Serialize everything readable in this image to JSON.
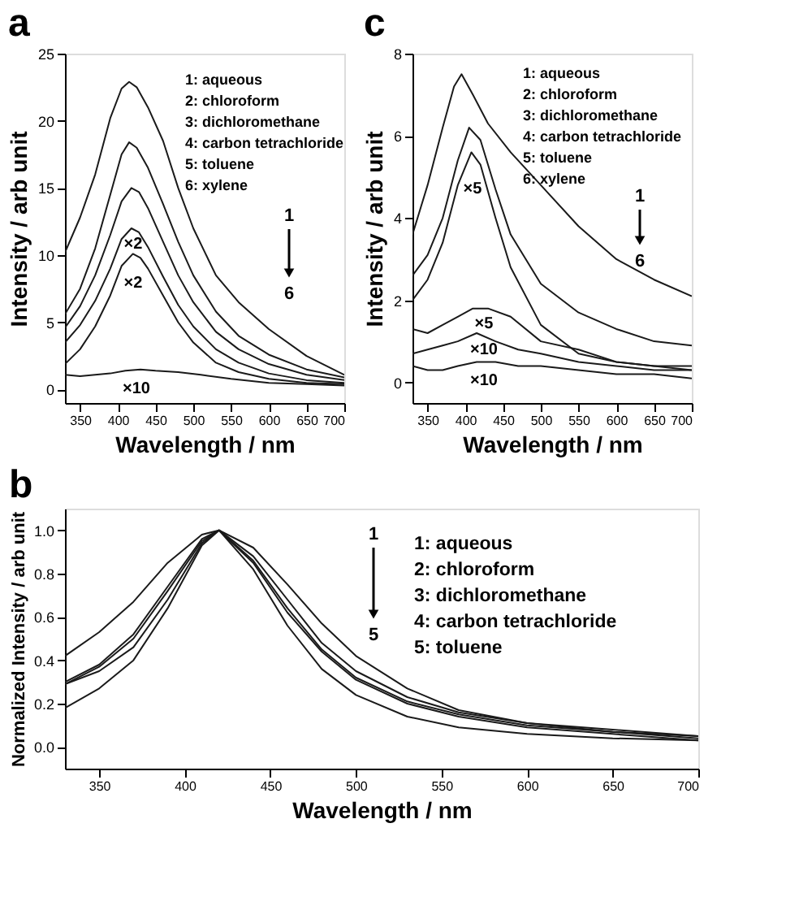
{
  "chart_data": [
    {
      "type": "line",
      "title": "a",
      "xlabel": "Wavelength / nm",
      "ylabel": "Intensity / arb unit",
      "xlim": [
        330,
        700
      ],
      "ylim": [
        -1,
        25
      ],
      "xticks": [
        350,
        400,
        450,
        500,
        550,
        600,
        650,
        700
      ],
      "yticks": [
        0,
        5,
        10,
        15,
        20,
        25
      ],
      "grid": false,
      "legend": false,
      "series": [
        {
          "color": "#1a1a1a",
          "x": [
            330,
            350,
            370,
            390,
            405,
            415,
            425,
            440,
            460,
            480,
            500,
            530,
            560,
            600,
            650,
            700
          ],
          "values": [
            10.2,
            12.8,
            16.0,
            20.2,
            22.4,
            22.9,
            22.5,
            21.0,
            18.5,
            15.0,
            12.0,
            8.5,
            6.5,
            4.5,
            2.5,
            1.1
          ]
        },
        {
          "color": "#1a1a1a",
          "x": [
            330,
            350,
            370,
            390,
            405,
            415,
            425,
            440,
            460,
            480,
            500,
            530,
            560,
            600,
            650,
            700
          ],
          "values": [
            5.6,
            7.5,
            10.5,
            14.5,
            17.5,
            18.4,
            18.0,
            16.5,
            13.8,
            11.0,
            8.5,
            5.8,
            4.0,
            2.6,
            1.5,
            0.9
          ]
        },
        {
          "color": "#1a1a1a",
          "x": [
            330,
            350,
            370,
            390,
            405,
            418,
            428,
            440,
            460,
            480,
            500,
            530,
            560,
            600,
            650,
            700
          ],
          "values": [
            4.6,
            6.2,
            8.5,
            11.5,
            14.0,
            15.0,
            14.7,
            13.5,
            11.0,
            8.5,
            6.5,
            4.3,
            3.0,
            1.9,
            1.1,
            0.7
          ]
        },
        {
          "color": "#1a1a1a",
          "x": [
            330,
            350,
            370,
            390,
            405,
            418,
            428,
            440,
            460,
            480,
            500,
            530,
            560,
            600,
            650,
            700
          ],
          "values": [
            3.5,
            4.8,
            6.6,
            9.0,
            11.2,
            12.0,
            11.7,
            10.6,
            8.4,
            6.3,
            4.7,
            3.0,
            2.0,
            1.2,
            0.7,
            0.5
          ]
        },
        {
          "color": "#1a1a1a",
          "x": [
            330,
            350,
            370,
            390,
            405,
            420,
            430,
            440,
            460,
            480,
            500,
            530,
            560,
            600,
            650,
            700
          ],
          "values": [
            1.9,
            3.0,
            4.7,
            7.0,
            9.2,
            10.1,
            9.8,
            9.0,
            7.0,
            5.0,
            3.5,
            2.0,
            1.3,
            0.8,
            0.5,
            0.4
          ]
        },
        {
          "color": "#1a1a1a",
          "x": [
            330,
            350,
            370,
            390,
            410,
            430,
            450,
            480,
            510,
            550,
            600,
            650,
            700
          ],
          "values": [
            1.1,
            1.0,
            1.1,
            1.2,
            1.4,
            1.5,
            1.4,
            1.3,
            1.1,
            0.8,
            0.5,
            0.4,
            0.3
          ]
        }
      ],
      "annotations": [
        "1: aqueous",
        "2: chloroform",
        "3: dichloromethane",
        "4: carbon tetrachloride",
        "5: toluene",
        "6: xylene",
        "1",
        "6",
        "×2",
        "×2",
        "×10"
      ]
    },
    {
      "type": "line",
      "title": "c",
      "xlabel": "Wavelength / nm",
      "ylabel": "Intensity / arb unit",
      "xlim": [
        330,
        700
      ],
      "ylim": [
        -0.5,
        8
      ],
      "xticks": [
        350,
        400,
        450,
        500,
        550,
        600,
        650,
        700
      ],
      "yticks": [
        0,
        2,
        4,
        6,
        8
      ],
      "grid": false,
      "legend": false,
      "series": [
        {
          "color": "#1a1a1a",
          "x": [
            330,
            350,
            370,
            385,
            395,
            410,
            430,
            460,
            500,
            550,
            600,
            650,
            700
          ],
          "values": [
            3.6,
            4.8,
            6.2,
            7.2,
            7.5,
            7.0,
            6.3,
            5.6,
            4.8,
            3.8,
            3.0,
            2.5,
            2.1
          ]
        },
        {
          "color": "#1a1a1a",
          "x": [
            330,
            350,
            370,
            390,
            405,
            420,
            440,
            460,
            500,
            550,
            600,
            650,
            700
          ],
          "values": [
            2.6,
            3.1,
            4.0,
            5.4,
            6.2,
            5.9,
            4.7,
            3.6,
            2.4,
            1.7,
            1.3,
            1.0,
            0.9
          ]
        },
        {
          "color": "#1a1a1a",
          "x": [
            330,
            350,
            370,
            390,
            408,
            420,
            440,
            460,
            500,
            550,
            600,
            650,
            700
          ],
          "values": [
            2.0,
            2.5,
            3.4,
            4.8,
            5.6,
            5.3,
            4.0,
            2.8,
            1.4,
            0.7,
            0.5,
            0.4,
            0.4
          ]
        },
        {
          "color": "#1a1a1a",
          "x": [
            330,
            350,
            370,
            390,
            410,
            430,
            460,
            500,
            550,
            600,
            650,
            700
          ],
          "values": [
            1.3,
            1.2,
            1.4,
            1.6,
            1.8,
            1.8,
            1.6,
            1.0,
            0.8,
            0.5,
            0.4,
            0.3
          ]
        },
        {
          "color": "#1a1a1a",
          "x": [
            330,
            350,
            370,
            390,
            415,
            440,
            470,
            500,
            550,
            600,
            650,
            700
          ],
          "values": [
            0.7,
            0.8,
            0.9,
            1.0,
            1.2,
            1.0,
            0.8,
            0.7,
            0.5,
            0.4,
            0.3,
            0.3
          ]
        },
        {
          "color": "#1a1a1a",
          "x": [
            330,
            350,
            370,
            390,
            415,
            440,
            470,
            500,
            550,
            600,
            650,
            700
          ],
          "values": [
            0.4,
            0.3,
            0.3,
            0.4,
            0.5,
            0.5,
            0.4,
            0.4,
            0.3,
            0.2,
            0.2,
            0.1
          ]
        }
      ],
      "annotations": [
        "1: aqueous",
        "2: chloroform",
        "3: dichloromethane",
        "4: carbon tetrachloride",
        "5: toluene",
        "6: xylene",
        "1",
        "6",
        "×5",
        "×5",
        "×10",
        "×10"
      ]
    },
    {
      "type": "line",
      "title": "b",
      "xlabel": "Wavelength / nm",
      "ylabel": "Normalized Intensity / arb unit",
      "xlim": [
        330,
        700
      ],
      "ylim": [
        -0.1,
        1.1
      ],
      "xticks": [
        350,
        400,
        450,
        500,
        550,
        600,
        650,
        700
      ],
      "yticks": [
        {
          "value": 0,
          "label": "0.0"
        },
        0.2,
        0.4,
        0.6,
        0.8,
        {
          "value": 1,
          "label": "1.0"
        }
      ],
      "grid": false,
      "legend": false,
      "series": [
        {
          "color": "#1a1a1a",
          "x": [
            330,
            350,
            370,
            390,
            410,
            420,
            440,
            460,
            480,
            500,
            530,
            560,
            600,
            650,
            700
          ],
          "values": [
            0.42,
            0.53,
            0.67,
            0.85,
            0.98,
            1.0,
            0.92,
            0.75,
            0.57,
            0.42,
            0.27,
            0.17,
            0.11,
            0.07,
            0.05
          ]
        },
        {
          "color": "#1a1a1a",
          "x": [
            330,
            350,
            370,
            390,
            410,
            420,
            440,
            460,
            480,
            500,
            530,
            560,
            600,
            650,
            700
          ],
          "values": [
            0.3,
            0.38,
            0.52,
            0.74,
            0.96,
            1.0,
            0.86,
            0.64,
            0.45,
            0.32,
            0.21,
            0.15,
            0.1,
            0.07,
            0.04
          ]
        },
        {
          "color": "#1a1a1a",
          "x": [
            330,
            350,
            370,
            390,
            410,
            420,
            440,
            460,
            480,
            500,
            530,
            560,
            600,
            650,
            700
          ],
          "values": [
            0.29,
            0.37,
            0.5,
            0.72,
            0.95,
            1.0,
            0.85,
            0.62,
            0.44,
            0.31,
            0.2,
            0.14,
            0.09,
            0.06,
            0.03
          ]
        },
        {
          "color": "#1a1a1a",
          "x": [
            330,
            350,
            370,
            390,
            410,
            420,
            440,
            460,
            480,
            500,
            530,
            560,
            600,
            650,
            700
          ],
          "values": [
            0.29,
            0.35,
            0.46,
            0.68,
            0.94,
            1.0,
            0.88,
            0.68,
            0.48,
            0.35,
            0.23,
            0.16,
            0.11,
            0.08,
            0.05
          ]
        },
        {
          "color": "#1a1a1a",
          "x": [
            330,
            350,
            370,
            390,
            410,
            420,
            440,
            460,
            480,
            500,
            530,
            560,
            600,
            650,
            700
          ],
          "values": [
            0.18,
            0.27,
            0.4,
            0.64,
            0.93,
            1.0,
            0.82,
            0.56,
            0.36,
            0.24,
            0.14,
            0.09,
            0.06,
            0.04,
            0.03
          ]
        }
      ],
      "annotations": [
        "1: aqueous",
        "2: chloroform",
        "3: dichloromethane",
        "4: carbon tetrachloride",
        "5: toluene",
        "1",
        "5"
      ]
    }
  ]
}
